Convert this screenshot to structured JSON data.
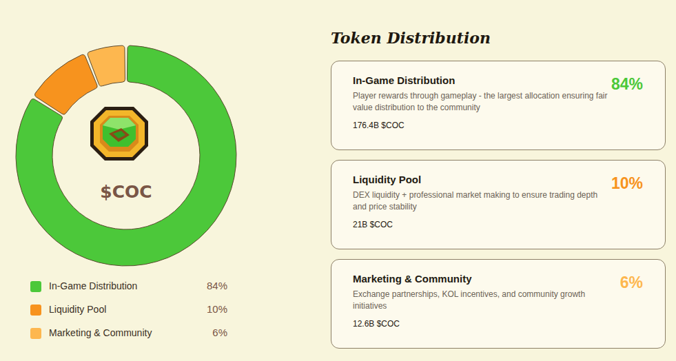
{
  "chart_data": {
    "type": "pie",
    "center_label": "$COC",
    "categories": [
      "In-Game Distribution",
      "Liquidity Pool",
      "Marketing & Community"
    ],
    "values": [
      84,
      10,
      6
    ],
    "value_labels": [
      "84%",
      "10%",
      "6%"
    ],
    "colors": [
      "#4cc83a",
      "#f7931e",
      "#fdb74f"
    ],
    "legend": "bottom-left"
  },
  "page": {
    "heading": "Token Distribution",
    "cards": [
      {
        "description": "Player rewards through gameplay - the largest allocation ensuring fair value distribution to the community",
        "amount": "176.4B $COC"
      },
      {
        "description": "DEX liquidity + professional market making to ensure trading depth and price stability",
        "amount": "21B $COC"
      },
      {
        "description": "Exchange partnerships, KOL incentives, and community growth initiatives",
        "amount": "12.6B $COC"
      }
    ]
  }
}
